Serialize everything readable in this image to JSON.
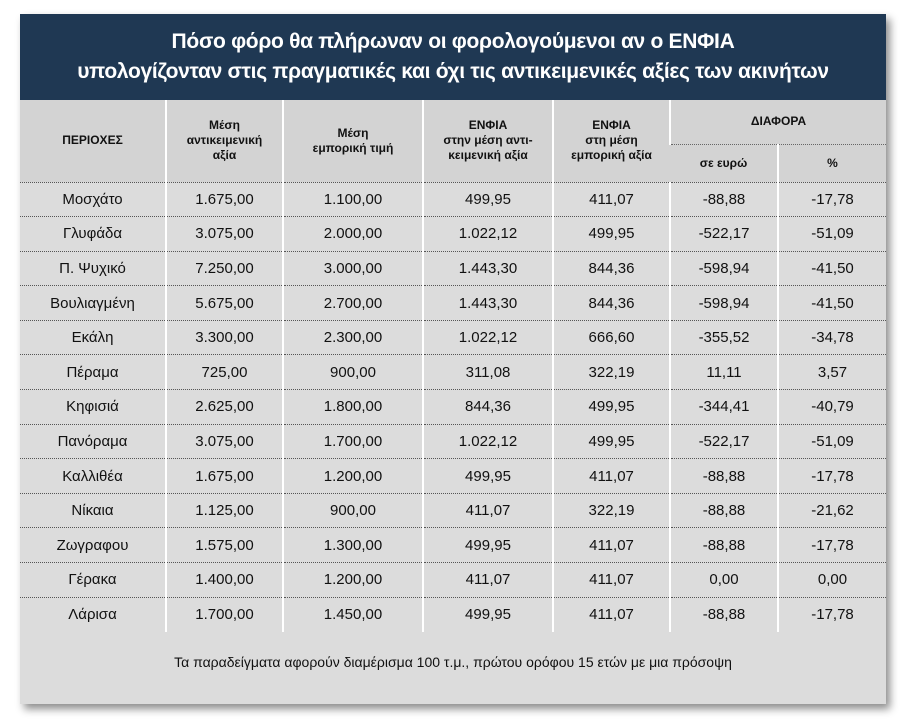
{
  "title": [
    "Πόσο φόρο θα πλήρωναν οι φορολογούμενοι αν ο ΕΝΦΙΑ",
    "υπολογίζονταν στις πραγματικές και όχι τις αντικειμενικές αξίες των ακινήτων"
  ],
  "table": {
    "header": [
      [
        "ΠΕΡΙΟΧΕΣ"
      ],
      [
        "Μέση",
        "αντικειμενική",
        "αξία"
      ],
      [
        "Μέση",
        "εμπορική τιμή"
      ],
      [
        "ΕΝΦΙΑ",
        "στην μέση αντι-",
        "κειμενική αξία"
      ],
      [
        "ΕΝΦΙΑ",
        "στη μέση",
        "εμπορική αξία"
      ],
      [
        "ΔΙΑΦΟΡΑ"
      ]
    ],
    "subheader": [
      "σε ευρώ",
      "%"
    ],
    "rows": [
      [
        "Μοσχάτο",
        "1.675,00",
        "1.100,00",
        "499,95",
        "411,07",
        "-88,88",
        "-17,78"
      ],
      [
        "Γλυφάδα",
        "3.075,00",
        "2.000,00",
        "1.022,12",
        "499,95",
        "-522,17",
        "-51,09"
      ],
      [
        "Π. Ψυχικό",
        "7.250,00",
        "3.000,00",
        "1.443,30",
        "844,36",
        "-598,94",
        "-41,50"
      ],
      [
        "Βουλιαγμένη",
        "5.675,00",
        "2.700,00",
        "1.443,30",
        "844,36",
        "-598,94",
        "-41,50"
      ],
      [
        "Εκάλη",
        "3.300,00",
        "2.300,00",
        "1.022,12",
        "666,60",
        "-355,52",
        "-34,78"
      ],
      [
        "Πέραμα",
        "725,00",
        "900,00",
        "311,08",
        "322,19",
        "11,11",
        "3,57"
      ],
      [
        "Κηφισιά",
        "2.625,00",
        "1.800,00",
        "844,36",
        "499,95",
        "-344,41",
        "-40,79"
      ],
      [
        "Πανόραμα",
        "3.075,00",
        "1.700,00",
        "1.022,12",
        "499,95",
        "-522,17",
        "-51,09"
      ],
      [
        "Καλλιθέα",
        "1.675,00",
        "1.200,00",
        "499,95",
        "411,07",
        "-88,88",
        "-17,78"
      ],
      [
        "Νίκαια",
        "1.125,00",
        "900,00",
        "411,07",
        "322,19",
        "-88,88",
        "-21,62"
      ],
      [
        "Ζωγραφου",
        "1.575,00",
        "1.300,00",
        "499,95",
        "411,07",
        "-88,88",
        "-17,78"
      ],
      [
        "Γέρακα",
        "1.400,00",
        "1.200,00",
        "411,07",
        "411,07",
        "0,00",
        "0,00"
      ],
      [
        "Λάρισα",
        "1.700,00",
        "1.450,00",
        "499,95",
        "411,07",
        "-88,88",
        "-17,78"
      ]
    ]
  },
  "note": "Τα παραδείγματα αφορούν διαμέρισμα 100 τ.μ., πρώτου ορόφου 15 ετών με μια πρόσοψη"
}
